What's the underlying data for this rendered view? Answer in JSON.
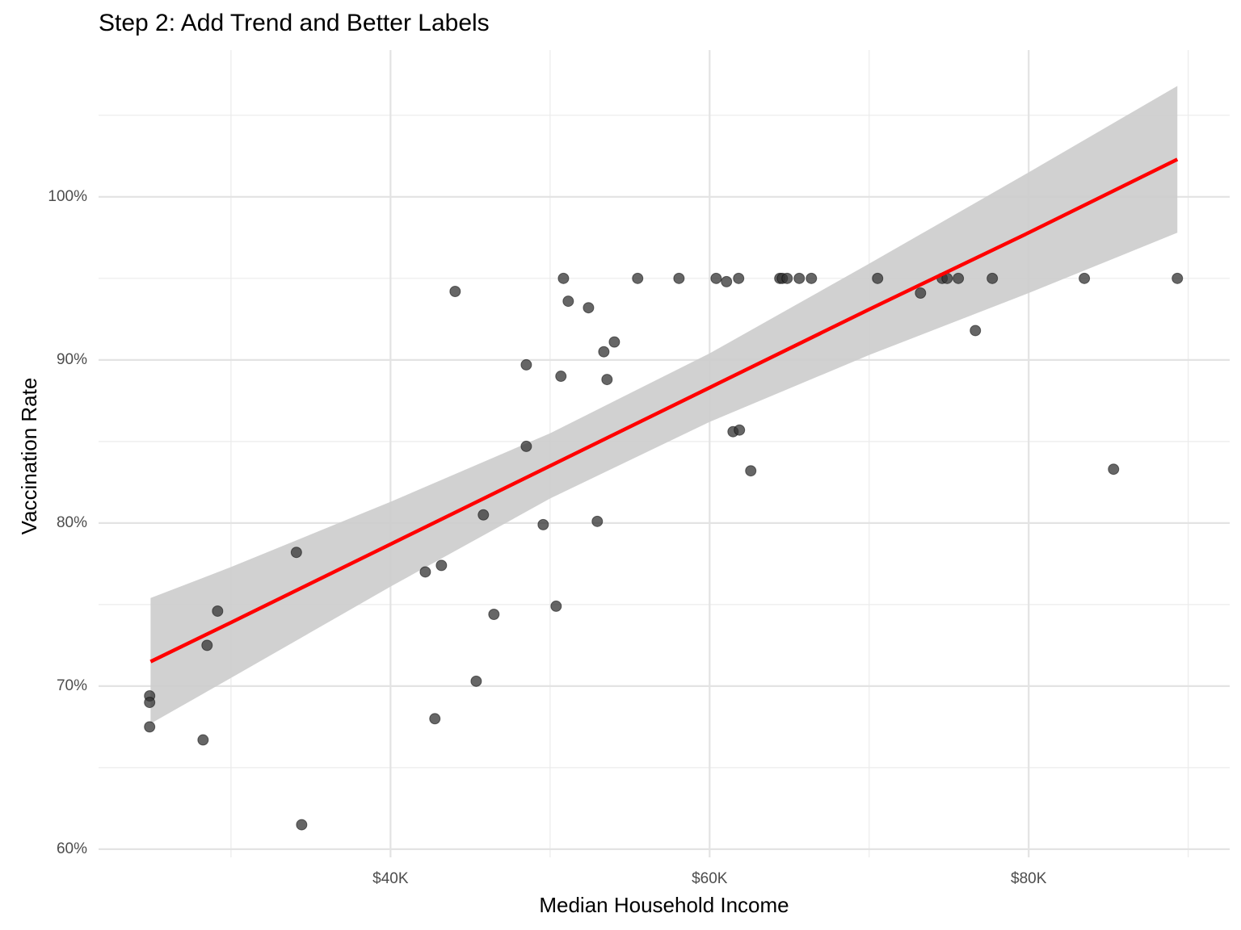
{
  "chart_data": {
    "type": "scatter",
    "title": "Step 2: Add Trend and Better Labels",
    "x_label": "Median Household Income",
    "y_label": "Vaccination Rate",
    "x": [
      24900,
      24900,
      24900,
      28250,
      28500,
      29160,
      34100,
      34430,
      42180,
      42780,
      43190,
      44050,
      45370,
      45820,
      46480,
      48510,
      48510,
      49570,
      50380,
      50680,
      50840,
      51140,
      52410,
      52960,
      53370,
      53570,
      54030,
      55490,
      58080,
      60410,
      61060,
      61470,
      61820,
      61870,
      62580,
      64400,
      64560,
      64860,
      65620,
      66380,
      70530,
      73220,
      74580,
      74890,
      75590,
      76660,
      77720,
      83490,
      85320,
      89320
    ],
    "values": [
      69.4,
      69.0,
      67.5,
      66.7,
      72.5,
      74.6,
      78.2,
      61.5,
      77.0,
      68.0,
      77.4,
      94.2,
      70.3,
      80.5,
      74.4,
      89.7,
      84.7,
      79.9,
      74.9,
      89.0,
      95.0,
      93.6,
      93.2,
      80.1,
      90.5,
      88.8,
      91.1,
      95.0,
      95.0,
      95.0,
      94.8,
      85.6,
      95.0,
      85.7,
      83.2,
      95.0,
      95.0,
      95.0,
      95.0,
      95.0,
      95.0,
      94.1,
      95.0,
      95.0,
      95.0,
      91.8,
      95.0,
      95.0,
      83.3,
      95.0
    ],
    "color": "#333333",
    "trend": {
      "color": "#ff0000",
      "band_color": "#cccccc",
      "x": [
        24960,
        30000,
        40000,
        50000,
        60000,
        70000,
        80000,
        89320
      ],
      "values": [
        71.5,
        73.9,
        78.7,
        83.5,
        88.3,
        93.1,
        97.8,
        102.3
      ],
      "lower": [
        67.7,
        70.5,
        76.1,
        81.5,
        86.2,
        90.3,
        94.1,
        97.8
      ],
      "upper": [
        75.4,
        77.3,
        81.3,
        85.5,
        90.4,
        95.9,
        101.5,
        106.8
      ]
    },
    "xlim": [
      21700,
      92600
    ],
    "ylim": [
      59.5,
      109
    ],
    "xticks": [
      {
        "value": 40000,
        "label": "$40K"
      },
      {
        "value": 60000,
        "label": "$60K"
      },
      {
        "value": 80000,
        "label": "$80K"
      }
    ],
    "yticks": [
      {
        "value": 60,
        "label": "60%"
      },
      {
        "value": 70,
        "label": "70%"
      },
      {
        "value": 80,
        "label": "80%"
      },
      {
        "value": 90,
        "label": "90%"
      },
      {
        "value": 100,
        "label": "100%"
      }
    ],
    "x_minor_ticks": [
      30000,
      50000,
      70000,
      90000
    ],
    "y_minor_ticks": [
      65,
      75,
      85,
      95,
      105
    ],
    "grid": true
  }
}
